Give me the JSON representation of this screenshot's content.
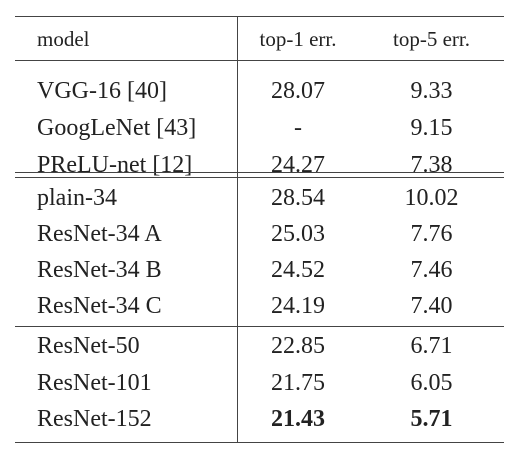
{
  "table": {
    "headers": [
      "model",
      "top-1 err.",
      "top-5 err."
    ],
    "groups": [
      {
        "rows": [
          {
            "model": "VGG-16 [40]",
            "top1": "28.07",
            "top5": "9.33"
          },
          {
            "model": "GoogLeNet [43]",
            "top1": "-",
            "top5": "9.15"
          },
          {
            "model": "PReLU-net [12]",
            "top1": "24.27",
            "top5": "7.38"
          }
        ]
      },
      {
        "rows": [
          {
            "model": "plain-34",
            "top1": "28.54",
            "top5": "10.02"
          },
          {
            "model": "ResNet-34 A",
            "top1": "25.03",
            "top5": "7.76"
          },
          {
            "model": "ResNet-34 B",
            "top1": "24.52",
            "top5": "7.46"
          },
          {
            "model": "ResNet-34 C",
            "top1": "24.19",
            "top5": "7.40"
          }
        ]
      },
      {
        "rows": [
          {
            "model": "ResNet-50",
            "top1": "22.85",
            "top5": "6.71"
          },
          {
            "model": "ResNet-101",
            "top1": "21.75",
            "top5": "6.05"
          },
          {
            "model": "ResNet-152",
            "top1": "21.43",
            "top5": "5.71",
            "bold": true
          }
        ]
      }
    ]
  }
}
